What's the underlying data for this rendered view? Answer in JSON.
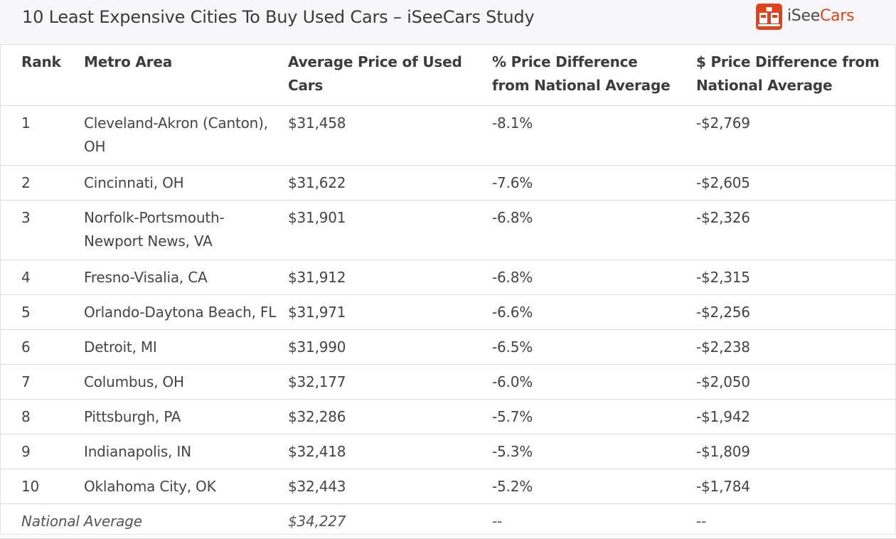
{
  "header": {
    "title": "10 Least Expensive Cities To Buy Used Cars – iSeeCars Study",
    "logo": {
      "icon": "isee-cars-logo-icon",
      "text_part1": "iSee",
      "text_part2": "Cars",
      "brand_color": "#e0431b"
    }
  },
  "table": {
    "columns": [
      "Rank",
      "Metro Area",
      "Average Price of Used Cars",
      "% Price Difference from National Average",
      "$ Price Difference from National Average"
    ],
    "rows": [
      {
        "rank": "1",
        "metro": "Cleveland-Akron (Canton), OH",
        "price": "$31,458",
        "pct": "-8.1%",
        "dollar": "-$2,769"
      },
      {
        "rank": "2",
        "metro": "Cincinnati, OH",
        "price": "$31,622",
        "pct": "-7.6%",
        "dollar": "-$2,605"
      },
      {
        "rank": "3",
        "metro": "Norfolk-Portsmouth-Newport News, VA",
        "price": "$31,901",
        "pct": "-6.8%",
        "dollar": "-$2,326"
      },
      {
        "rank": "4",
        "metro": "Fresno-Visalia, CA",
        "price": "$31,912",
        "pct": "-6.8%",
        "dollar": "-$2,315"
      },
      {
        "rank": "5",
        "metro": "Orlando-Daytona Beach, FL",
        "price": "$31,971",
        "pct": "-6.6%",
        "dollar": "-$2,256"
      },
      {
        "rank": "6",
        "metro": "Detroit, MI",
        "price": "$31,990",
        "pct": "-6.5%",
        "dollar": "-$2,238"
      },
      {
        "rank": "7",
        "metro": "Columbus, OH",
        "price": "$32,177",
        "pct": "-6.0%",
        "dollar": "-$2,050"
      },
      {
        "rank": "8",
        "metro": "Pittsburgh, PA",
        "price": "$32,286",
        "pct": "-5.7%",
        "dollar": "-$1,942"
      },
      {
        "rank": "9",
        "metro": "Indianapolis, IN",
        "price": "$32,418",
        "pct": "-5.3%",
        "dollar": "-$1,809"
      },
      {
        "rank": "10",
        "metro": "Oklahoma City, OK",
        "price": "$32,443",
        "pct": "-5.2%",
        "dollar": "-$1,784"
      }
    ],
    "national_average": {
      "label": "National Average",
      "price": "$34,227",
      "pct": "--",
      "dollar": "--"
    }
  }
}
